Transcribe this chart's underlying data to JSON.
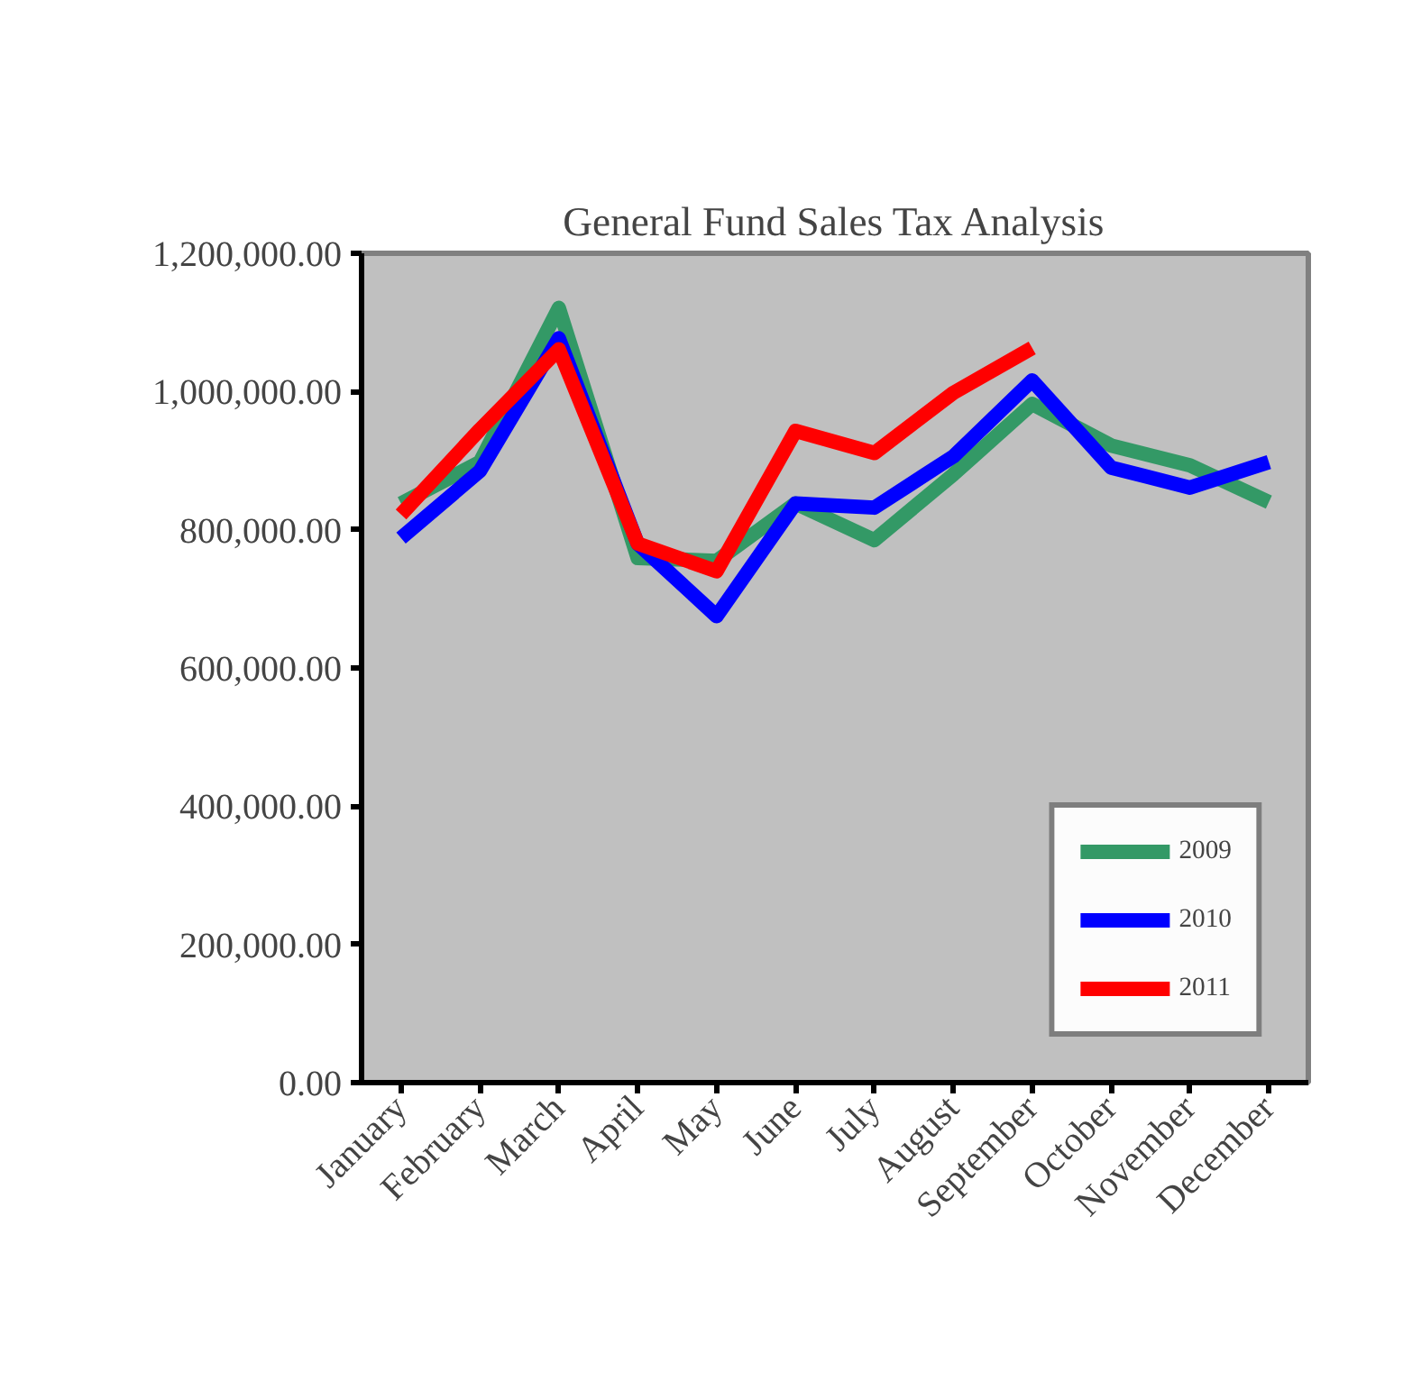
{
  "chart_data": {
    "type": "line",
    "title": "General Fund Sales Tax Analysis",
    "categories": [
      "January",
      "February",
      "March",
      "April",
      "May",
      "June",
      "July",
      "August",
      "September",
      "October",
      "November",
      "December"
    ],
    "series": [
      {
        "name": "2009",
        "color": "#339966",
        "values": [
          838000,
          898000,
          1121000,
          759000,
          755000,
          838000,
          785000,
          880000,
          982000,
          922000,
          893000,
          840000
        ]
      },
      {
        "name": "2010",
        "color": "#0000ff",
        "values": [
          788000,
          885000,
          1077000,
          780000,
          675000,
          838000,
          832000,
          906000,
          1016000,
          890000,
          861000,
          898000
        ]
      },
      {
        "name": "2011",
        "color": "#ff0000",
        "values": [
          822000,
          945000,
          1061000,
          780000,
          740000,
          943000,
          911000,
          998000,
          1063000,
          null,
          null,
          null
        ]
      }
    ],
    "ylim": [
      0,
      1200000
    ],
    "yticks": [
      {
        "value": 0,
        "label": "0.00"
      },
      {
        "value": 200000,
        "label": "200,000.00"
      },
      {
        "value": 400000,
        "label": "400,000.00"
      },
      {
        "value": 600000,
        "label": "600,000.00"
      },
      {
        "value": 800000,
        "label": "800,000.00"
      },
      {
        "value": 1000000,
        "label": "1,000,000.00"
      },
      {
        "value": 1200000,
        "label": "1,200,000.00"
      }
    ],
    "grid": false,
    "legend": "bottom right",
    "marker": "none",
    "line_style": "solid"
  }
}
